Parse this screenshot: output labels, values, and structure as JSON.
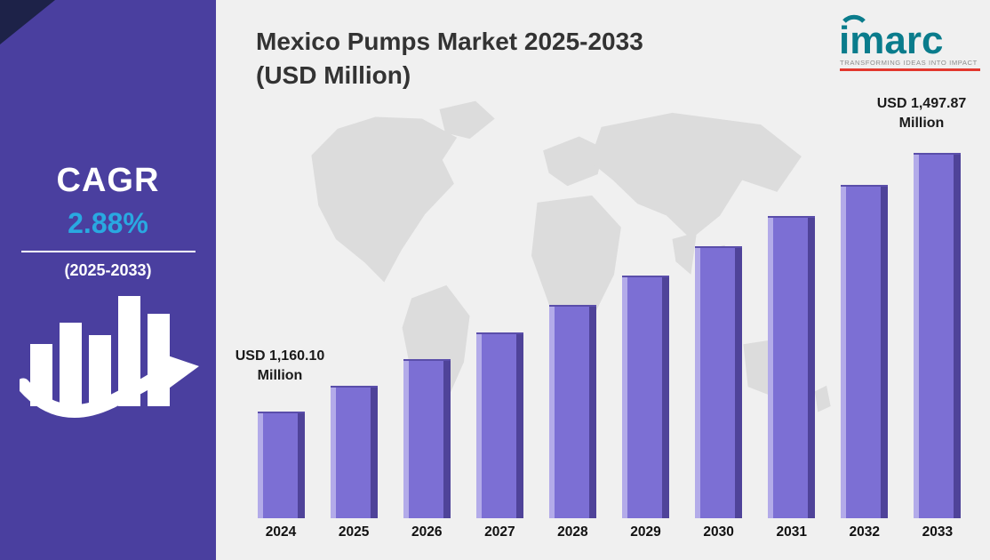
{
  "sidebar": {
    "cagr_label": "CAGR",
    "cagr_value": "2.88%",
    "cagr_period": "(2025-2033)",
    "background_color": "#4a3f9f",
    "accent_color": "#29a9e1",
    "corner_triangle_color": "#1d2248",
    "icon": "bar-chart-growth-arrow-icon"
  },
  "logo": {
    "name": "imarc",
    "tagline": "TRANSFORMING IDEAS INTO IMPACT",
    "brand_color": "#0a7c8c",
    "tagline_color": "#8c8c8c",
    "accent_color": "#e2372e",
    "icon": "signal-arc-icon"
  },
  "title": {
    "line1": "Mexico Pumps Market 2025-2033",
    "line2": "(USD Million)"
  },
  "chart_data": {
    "type": "bar",
    "title": "Mexico Pumps Market 2025-2033 (USD Million)",
    "categories": [
      "2024",
      "2025",
      "2026",
      "2027",
      "2028",
      "2029",
      "2030",
      "2031",
      "2032",
      "2033"
    ],
    "values": [
      1160.1,
      1193.5,
      1227.9,
      1263.3,
      1299.6,
      1337.1,
      1375.6,
      1415.2,
      1455.9,
      1497.87
    ],
    "units": "USD Million",
    "xlabel": "",
    "ylabel": "",
    "axis_min": 1020,
    "axis_max": 1520,
    "gridlines": false,
    "legend": "none",
    "bar_color": "#7c6fd4",
    "bar_edge_light": "#b3abe9",
    "bar_edge_dark": "#4f4399",
    "background_map": "world-map-silhouette",
    "data_labels": {
      "first": {
        "line1": "USD 1,160.10",
        "line2": "Million",
        "category": "2024"
      },
      "last": {
        "line1": "USD 1,497.87",
        "line2": "Million",
        "category": "2033"
      }
    }
  }
}
